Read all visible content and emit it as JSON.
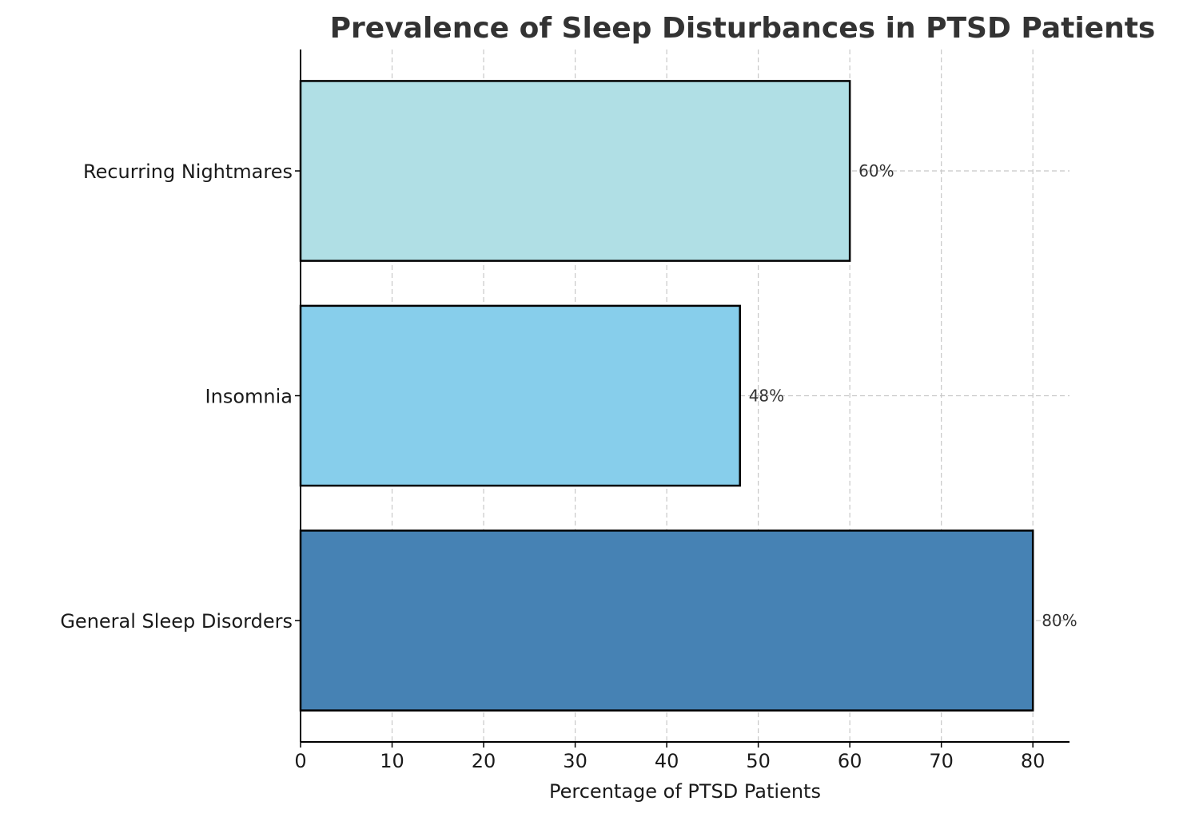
{
  "chart_data": {
    "type": "bar",
    "orientation": "horizontal",
    "title": "Prevalence of Sleep Disturbances in PTSD Patients",
    "xlabel": "Percentage of PTSD Patients",
    "ylabel": "",
    "categories": [
      "General Sleep Disorders",
      "Insomnia",
      "Recurring Nightmares"
    ],
    "values": [
      80,
      48,
      60
    ],
    "data_labels": [
      "80%",
      "48%",
      "60%"
    ],
    "colors": [
      "#4682B4",
      "#87CEEB",
      "#B0DFE5"
    ],
    "xlim": [
      0,
      84
    ],
    "xticks": [
      0,
      10,
      20,
      30,
      40,
      50,
      60,
      70,
      80
    ],
    "xtick_labels": [
      "0",
      "10",
      "20",
      "30",
      "40",
      "50",
      "60",
      "70",
      "80"
    ],
    "grid": true
  }
}
